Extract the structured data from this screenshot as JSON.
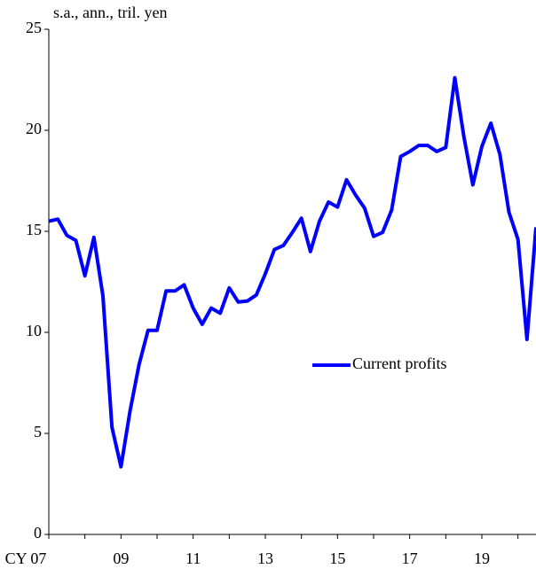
{
  "chart_data": {
    "type": "line",
    "y_axis_label": "s.a., ann., tril. yen",
    "categories": [
      "CY 07",
      null,
      null,
      null,
      null,
      null,
      null,
      null,
      "09",
      null,
      null,
      null,
      null,
      null,
      null,
      null,
      "11",
      null,
      null,
      null,
      null,
      null,
      null,
      null,
      "13",
      null,
      null,
      null,
      null,
      null,
      null,
      null,
      "15",
      null,
      null,
      null,
      null,
      null,
      null,
      null,
      "17",
      null,
      null,
      null,
      null,
      null,
      null,
      null,
      "19",
      null,
      null,
      null,
      null,
      null,
      null
    ],
    "series": [
      {
        "name": "Current profits",
        "color": "#0000ff",
        "values": [
          15.5,
          15.6,
          14.8,
          14.55,
          12.8,
          14.7,
          11.8,
          5.3,
          3.35,
          6.1,
          8.4,
          10.1,
          10.1,
          12.05,
          12.05,
          12.35,
          11.2,
          10.4,
          11.2,
          10.95,
          12.2,
          11.5,
          11.55,
          11.85,
          12.9,
          14.1,
          14.3,
          14.95,
          15.65,
          14.0,
          15.5,
          16.45,
          16.2,
          17.55,
          16.8,
          16.15,
          14.75,
          14.95,
          16.05,
          18.7,
          18.95,
          19.25,
          19.25,
          18.95,
          19.15,
          22.6,
          19.7,
          17.3,
          19.2,
          20.35,
          18.8,
          15.95,
          14.6,
          9.65,
          15.2
        ]
      }
    ],
    "ylim": [
      0,
      25
    ],
    "yticks": [
      0,
      5,
      10,
      15,
      20,
      25
    ],
    "grid": false
  }
}
